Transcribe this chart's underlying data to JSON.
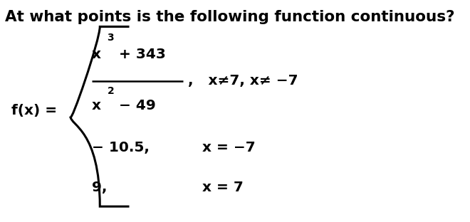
{
  "title": "At what points is the following function continuous?",
  "title_fontsize": 15.5,
  "bg_color": "#ffffff",
  "text_color": "#000000",
  "fx_label": "f(x) =",
  "num_text": "x",
  "num_exp": "3",
  "num_rest": " + 343",
  "den_text": "x",
  "den_exp": "2",
  "den_rest": " − 49",
  "cond1": ",   x≠7, x≠ −7",
  "val2": "− 10.5,",
  "cond2": "x = −7",
  "val3": "9,",
  "cond3": "x = 7",
  "fs_body": 14.5,
  "fs_super": 10.0
}
